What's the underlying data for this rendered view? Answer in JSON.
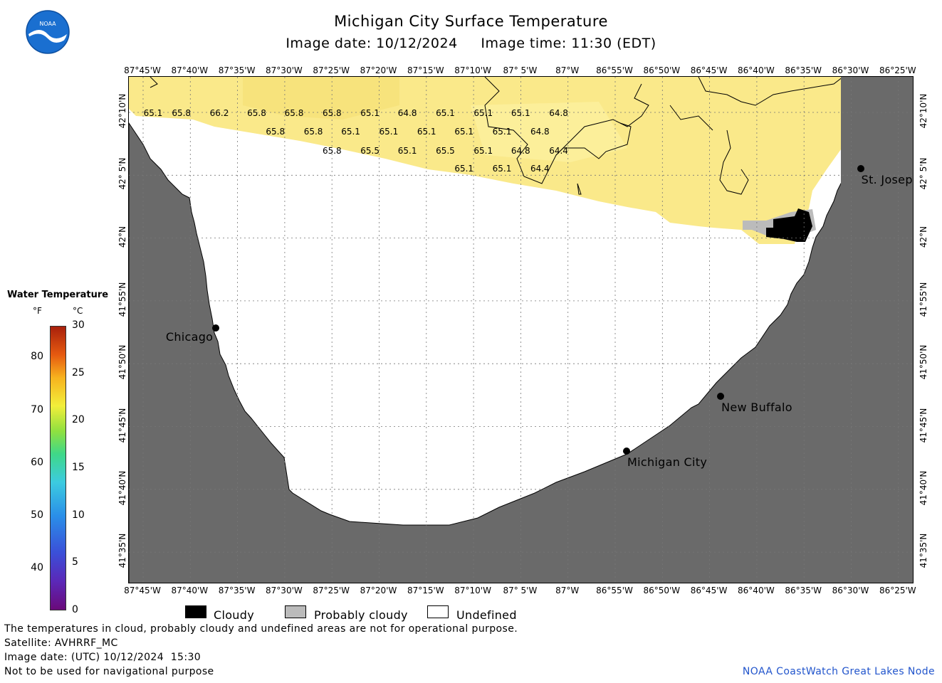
{
  "header": {
    "title": "Michigan City Surface Temperature",
    "image_date": "Image date: 10/12/2024",
    "image_time": "Image time: 11:30 (EDT)"
  },
  "logo": {
    "text": "NOAA"
  },
  "axes": {
    "lon_labels": [
      "87°45'W",
      "87°40'W",
      "87°35'W",
      "87°30'W",
      "87°25'W",
      "87°20'W",
      "87°15'W",
      "87°10'W",
      "87° 5'W",
      "87°W",
      "86°55'W",
      "86°50'W",
      "86°45'W",
      "86°40'W",
      "86°35'W",
      "86°30'W",
      "86°25'W"
    ],
    "lat_labels": [
      "42°10'N",
      "42° 5'N",
      "42°N",
      "41°55'N",
      "41°50'N",
      "41°45'N",
      "41°40'N",
      "41°35'N"
    ]
  },
  "temperatures": [
    {
      "lon": -87.745,
      "lat": 42.168,
      "v": "65.1"
    },
    {
      "lon": -87.695,
      "lat": 42.168,
      "v": "65.8"
    },
    {
      "lon": -87.628,
      "lat": 42.168,
      "v": "66.2"
    },
    {
      "lon": -87.562,
      "lat": 42.168,
      "v": "65.8"
    },
    {
      "lon": -87.496,
      "lat": 42.168,
      "v": "65.8"
    },
    {
      "lon": -87.429,
      "lat": 42.168,
      "v": "65.8"
    },
    {
      "lon": -87.362,
      "lat": 42.168,
      "v": "65.1"
    },
    {
      "lon": -87.296,
      "lat": 42.168,
      "v": "64.8"
    },
    {
      "lon": -87.229,
      "lat": 42.168,
      "v": "65.1"
    },
    {
      "lon": -87.162,
      "lat": 42.168,
      "v": "65.1"
    },
    {
      "lon": -87.096,
      "lat": 42.168,
      "v": "65.1"
    },
    {
      "lon": -87.029,
      "lat": 42.168,
      "v": "64.8"
    },
    {
      "lon": -87.529,
      "lat": 42.143,
      "v": "65.8"
    },
    {
      "lon": -87.462,
      "lat": 42.143,
      "v": "65.8"
    },
    {
      "lon": -87.396,
      "lat": 42.143,
      "v": "65.1"
    },
    {
      "lon": -87.329,
      "lat": 42.143,
      "v": "65.1"
    },
    {
      "lon": -87.262,
      "lat": 42.143,
      "v": "65.1"
    },
    {
      "lon": -87.196,
      "lat": 42.143,
      "v": "65.1"
    },
    {
      "lon": -87.129,
      "lat": 42.143,
      "v": "65.1"
    },
    {
      "lon": -87.062,
      "lat": 42.143,
      "v": "64.8"
    },
    {
      "lon": -87.429,
      "lat": 42.118,
      "v": "65.8"
    },
    {
      "lon": -87.362,
      "lat": 42.118,
      "v": "65.5"
    },
    {
      "lon": -87.296,
      "lat": 42.118,
      "v": "65.1"
    },
    {
      "lon": -87.229,
      "lat": 42.118,
      "v": "65.5"
    },
    {
      "lon": -87.162,
      "lat": 42.118,
      "v": "65.1"
    },
    {
      "lon": -87.096,
      "lat": 42.118,
      "v": "64.8"
    },
    {
      "lon": -87.029,
      "lat": 42.118,
      "v": "64.4"
    },
    {
      "lon": -87.196,
      "lat": 42.094,
      "v": "65.1"
    },
    {
      "lon": -87.129,
      "lat": 42.094,
      "v": "65.1"
    },
    {
      "lon": -87.062,
      "lat": 42.094,
      "v": "64.4"
    }
  ],
  "cities": [
    {
      "name": "Chicago",
      "lon": -87.634,
      "lat": 41.883,
      "label_side": "left"
    },
    {
      "name": "St. Joseph",
      "lon": -86.496,
      "lat": 42.094,
      "label_side": "right"
    },
    {
      "name": "New Buffalo",
      "lon": -86.743,
      "lat": 41.792,
      "label_side": "right"
    },
    {
      "name": "Michigan City",
      "lon": -86.909,
      "lat": 41.72,
      "label_side": "right"
    }
  ],
  "colorbar": {
    "title": "Water Temperature",
    "unit_f": "°F",
    "unit_c": "°C",
    "f_ticks": [
      "80",
      "70",
      "60",
      "50",
      "40"
    ],
    "c_ticks": [
      "30",
      "25",
      "20",
      "15",
      "10",
      "5",
      "0"
    ]
  },
  "legend": {
    "cloudy": "Cloudy",
    "probably_cloudy": "Probably cloudy",
    "undefined": "Undefined"
  },
  "footer": {
    "line1": "The temperatures in cloud, probably cloudy and undefined areas are not for operational purpose.",
    "line2": "Satellite: AVHRRF_MC",
    "line3": "Image date: (UTC) 10/12/2024  15:30",
    "line4": "Not to be used for navigational purpose",
    "credit": "NOAA CoastWatch Great Lakes Node"
  },
  "colors": {
    "land": "#6a6a6a",
    "water_warm": "#fae98a",
    "undefined": "#ffffff",
    "cloud": "#000000",
    "probably_cloud": "#bbbbbb",
    "credit": "#2255cc"
  }
}
